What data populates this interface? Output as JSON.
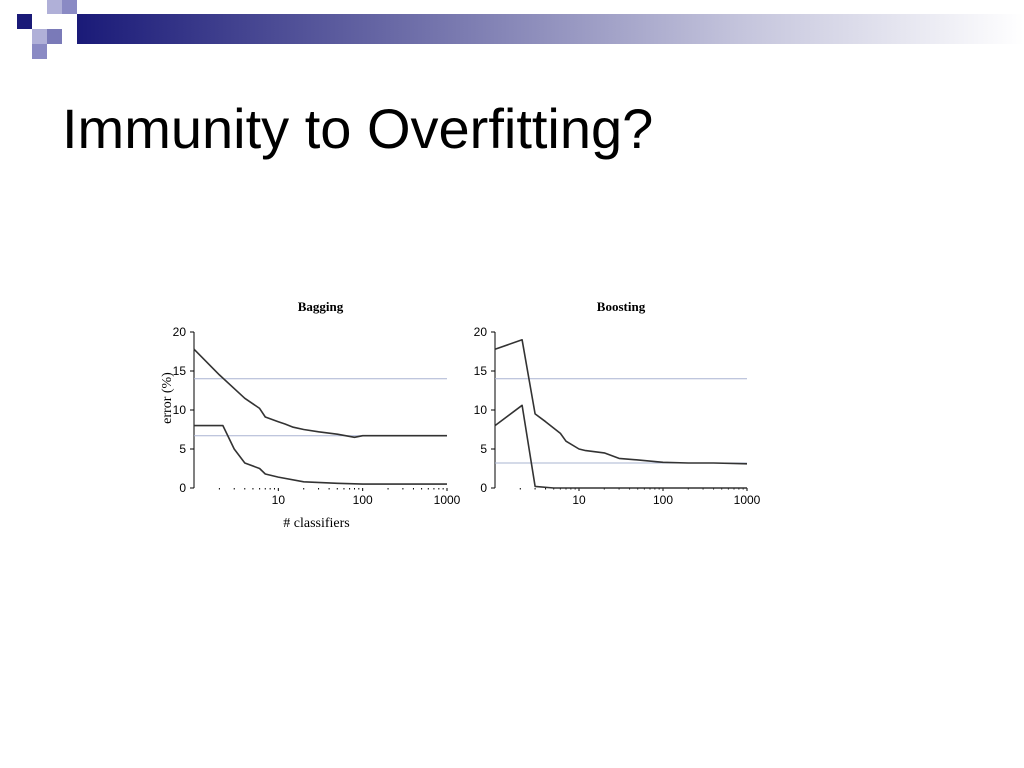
{
  "slide": {
    "title": "Immunity to Overfitting?"
  },
  "colors": {
    "deco_dark": "#1a1a78",
    "deco_light": "#9999cc",
    "curve": "#333333",
    "reference_line": "#aab4d2"
  },
  "chart_data": [
    {
      "type": "line",
      "title": "Bagging",
      "xlabel": "# classifiers",
      "ylabel": "error (%)",
      "x_scale": "log",
      "xlim": [
        1,
        1000
      ],
      "ylim": [
        0,
        20
      ],
      "x_ticks": [
        10,
        100,
        1000
      ],
      "x_tick_labels": [
        "10",
        "100",
        "1000"
      ],
      "y_ticks": [
        0,
        5,
        10,
        15,
        20
      ],
      "y_tick_labels": [
        "0",
        "5",
        "10",
        "15",
        "20"
      ],
      "reference_lines": [
        14,
        6.7
      ],
      "series": [
        {
          "role": "upper curve",
          "points": [
            [
              1,
              17.8
            ],
            [
              2,
              14.5
            ],
            [
              4,
              11.5
            ],
            [
              6,
              10.2
            ],
            [
              7,
              9.1
            ],
            [
              10,
              8.5
            ],
            [
              12,
              8.2
            ],
            [
              15,
              7.8
            ],
            [
              20,
              7.5
            ],
            [
              30,
              7.2
            ],
            [
              50,
              6.9
            ],
            [
              80,
              6.5
            ],
            [
              100,
              6.7
            ],
            [
              200,
              6.7
            ],
            [
              400,
              6.7
            ],
            [
              1000,
              6.7
            ]
          ]
        },
        {
          "role": "lower curve",
          "points": [
            [
              1,
              8
            ],
            [
              2.2,
              8
            ],
            [
              3,
              5
            ],
            [
              4,
              3.2
            ],
            [
              6,
              2.5
            ],
            [
              7,
              1.8
            ],
            [
              10,
              1.4
            ],
            [
              20,
              0.8
            ],
            [
              50,
              0.6
            ],
            [
              100,
              0.5
            ],
            [
              1000,
              0.5
            ]
          ]
        }
      ]
    },
    {
      "type": "line",
      "title": "Boosting",
      "xlabel": "",
      "ylabel": "",
      "x_scale": "log",
      "xlim": [
        1,
        1000
      ],
      "ylim": [
        0,
        20
      ],
      "x_ticks": [
        10,
        100,
        1000
      ],
      "x_tick_labels": [
        "10",
        "100",
        "1000"
      ],
      "y_ticks": [
        0,
        5,
        10,
        15,
        20
      ],
      "y_tick_labels": [
        "0",
        "5",
        "10",
        "15",
        "20"
      ],
      "reference_lines": [
        14,
        3.2
      ],
      "series": [
        {
          "role": "upper curve",
          "points": [
            [
              1,
              17.8
            ],
            [
              2.1,
              19
            ],
            [
              3,
              9.5
            ],
            [
              4,
              8.5
            ],
            [
              6,
              7
            ],
            [
              7,
              6
            ],
            [
              10,
              5
            ],
            [
              12,
              4.8
            ],
            [
              20,
              4.5
            ],
            [
              30,
              3.8
            ],
            [
              50,
              3.6
            ],
            [
              100,
              3.3
            ],
            [
              200,
              3.2
            ],
            [
              400,
              3.2
            ],
            [
              1000,
              3.1
            ]
          ]
        },
        {
          "role": "lower curve",
          "points": [
            [
              1,
              8
            ],
            [
              2.1,
              10.6
            ],
            [
              3,
              0.2
            ],
            [
              5,
              0
            ],
            [
              1000,
              0
            ]
          ]
        }
      ]
    }
  ]
}
